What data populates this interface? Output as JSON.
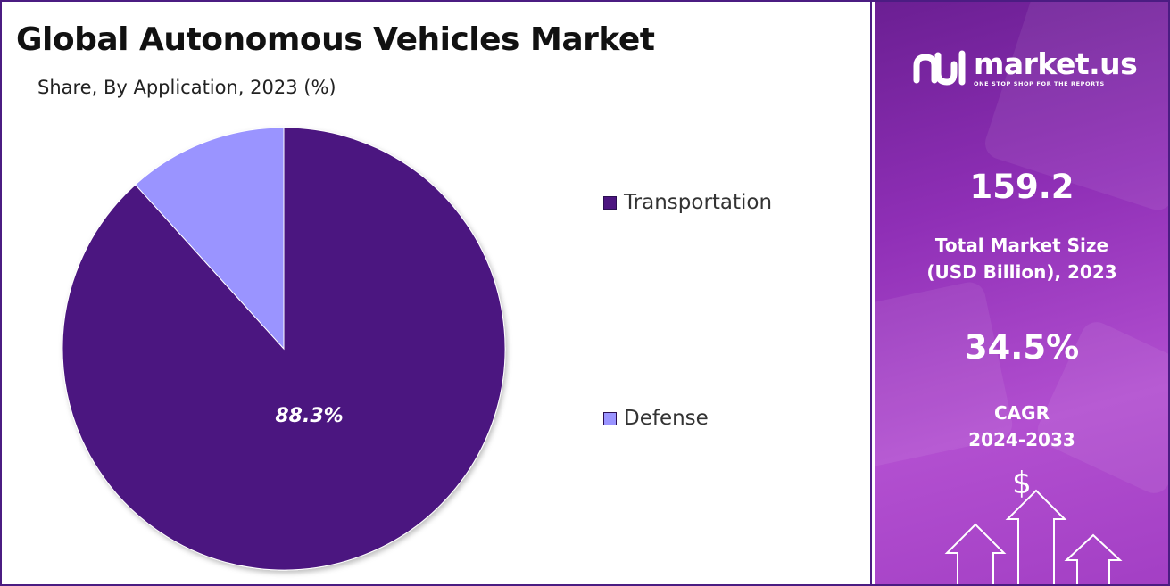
{
  "chart_data": {
    "type": "pie",
    "title": "Global Autonomous Vehicles Market",
    "subtitle": "Share, By Application, 2023 (%)",
    "slices": [
      {
        "name": "Transportation",
        "value": 88.3,
        "label": "88.3%",
        "color": "#4c1580"
      },
      {
        "name": "Defense",
        "value": 11.7,
        "label": "",
        "color": "#9a94ff"
      }
    ],
    "legend_position": "right"
  },
  "brand": {
    "name": "market.us",
    "tagline": "ONE STOP SHOP FOR THE REPORTS",
    "logo_icon": "market-us-logo-icon"
  },
  "stats": {
    "market_size_value": "159.2",
    "market_size_label": "Total Market Size\n(USD Billion), 2023",
    "cagr_value": "34.5%",
    "cagr_label": "CAGR\n2024-2033",
    "dollar_symbol": "$"
  },
  "colors": {
    "border": "#4b1c82",
    "panel_gradient_start": "#6b1f93",
    "panel_gradient_end": "#b24fd0"
  }
}
